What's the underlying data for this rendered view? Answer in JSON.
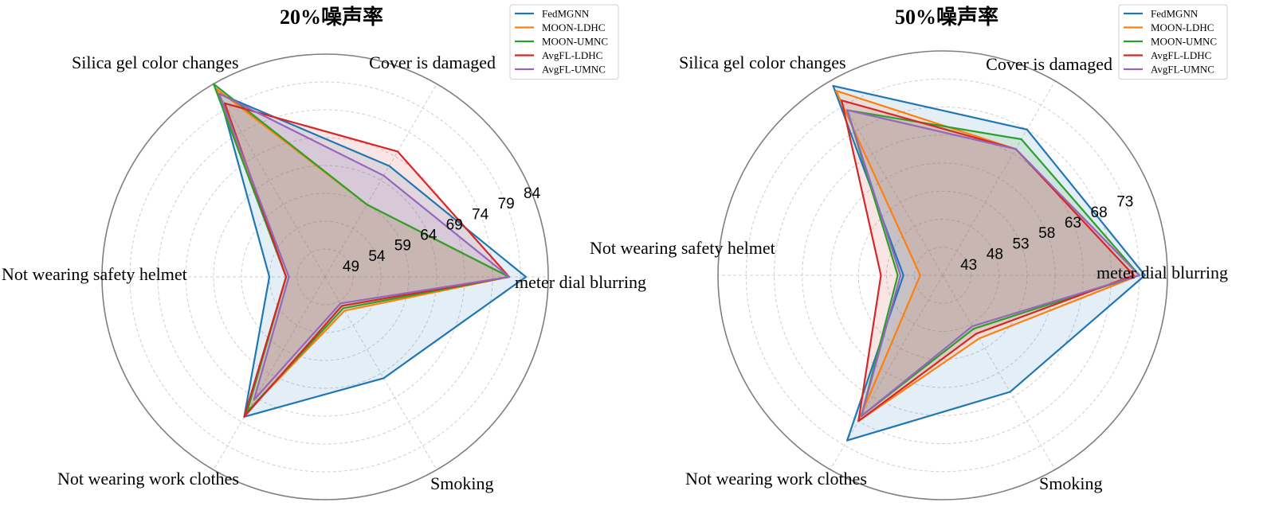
{
  "chart_data": [
    {
      "type": "radar",
      "title": "20%噪声率",
      "categories": [
        "meter dial blurring",
        "Cover is damaged",
        "Silica gel color changes",
        "Not wearing safety helmet",
        "Not wearing work clothes",
        "Smoking"
      ],
      "ticks": [
        "49",
        "54",
        "59",
        "64",
        "69",
        "74",
        "79",
        "84"
      ],
      "rlim": [
        44,
        84
      ],
      "grid": true,
      "legend_position": "top-right",
      "series": [
        {
          "name": "FedMGNN",
          "color": "#1f77b4",
          "values": [
            80,
            67,
            82,
            54,
            73,
            65
          ]
        },
        {
          "name": "MOON-LDHC",
          "color": "#ff7f0e",
          "values": [
            77,
            59,
            83,
            51,
            72,
            51
          ]
        },
        {
          "name": "MOON-UMNC",
          "color": "#2ca02c",
          "values": [
            77,
            59,
            84,
            51,
            72,
            50.5
          ]
        },
        {
          "name": "AvgFL-LDHC",
          "color": "#d62728",
          "values": [
            77,
            70,
            80,
            51,
            73,
            50
          ]
        },
        {
          "name": "AvgFL-UMNC",
          "color": "#9467bd",
          "values": [
            77,
            65,
            82,
            50.5,
            69.5,
            49.5
          ]
        }
      ]
    },
    {
      "type": "radar",
      "title": "50%噪声率",
      "categories": [
        "meter dial blurring",
        "Cover is damaged",
        "Silica gel color changes",
        "Not wearing safety helmet",
        "Not wearing work clothes",
        "Smoking"
      ],
      "ticks": [
        "43",
        "48",
        "53",
        "58",
        "63",
        "68",
        "73"
      ],
      "rlim": [
        38,
        78
      ],
      "grid": true,
      "legend_position": "top-right",
      "series": [
        {
          "name": "FedMGNN",
          "color": "#1f77b4",
          "values": [
            74,
            68,
            77,
            45,
            72,
            62
          ]
        },
        {
          "name": "MOON-LDHC",
          "color": "#ff7f0e",
          "values": [
            73,
            64,
            76,
            42,
            68,
            51
          ]
        },
        {
          "name": "MOON-UMNC",
          "color": "#2ca02c",
          "values": [
            73,
            66,
            72,
            46,
            67,
            49
          ]
        },
        {
          "name": "AvgFL-LDHC",
          "color": "#d62728",
          "values": [
            72,
            64,
            74,
            49,
            68,
            50
          ]
        },
        {
          "name": "AvgFL-UMNC",
          "color": "#9467bd",
          "values": [
            73,
            64,
            72,
            45.5,
            67,
            48.5
          ]
        }
      ]
    }
  ]
}
